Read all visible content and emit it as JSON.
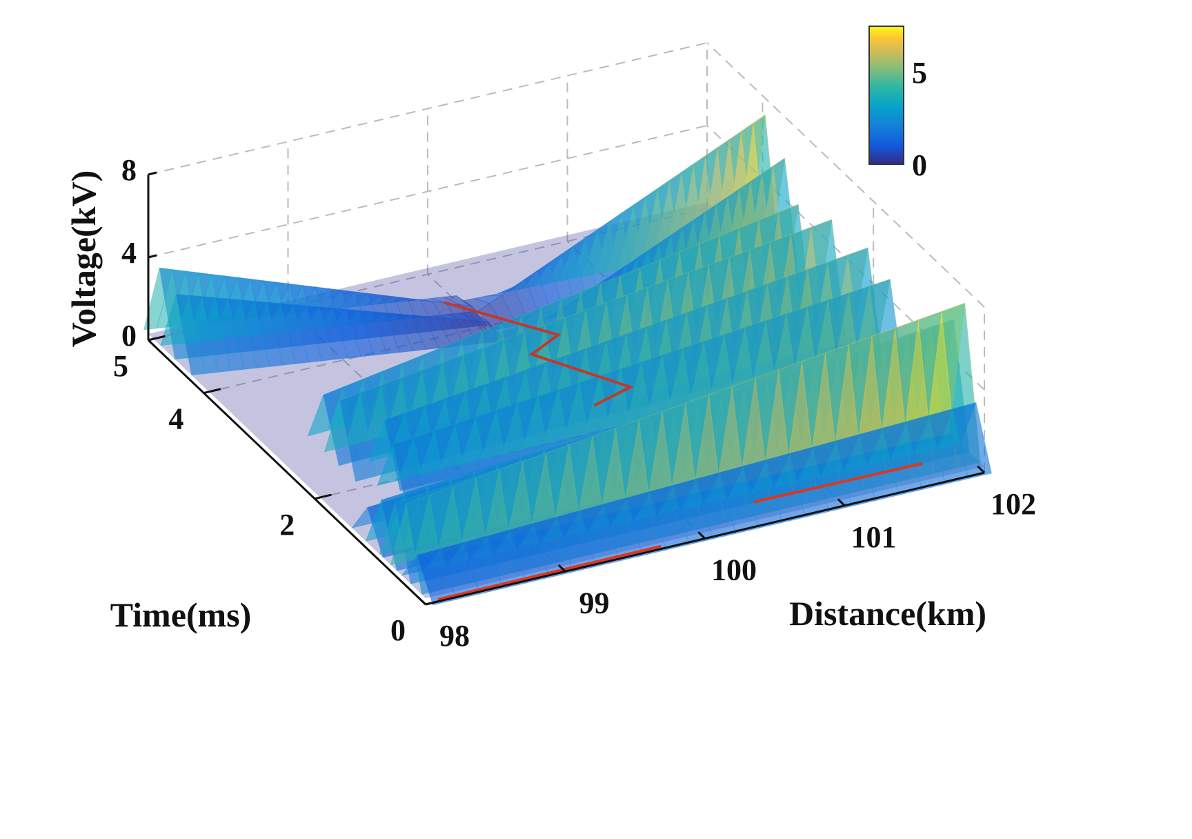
{
  "chart_data": {
    "type": "surface",
    "xlabel": "Distance(km)",
    "ylabel": "Time(ms)",
    "zlabel": "Voltage(kV)",
    "xlim": [
      98,
      102
    ],
    "ylim": [
      0,
      5
    ],
    "zlim": [
      0,
      8
    ],
    "xticks": [
      "98",
      "99",
      "100",
      "101",
      "102"
    ],
    "yticks": [
      "0",
      "2",
      "4",
      "5"
    ],
    "zticks": [
      "0",
      "4",
      "8"
    ],
    "grid": true,
    "colormap": "parula",
    "colorbar": {
      "range": [
        0,
        7.5
      ],
      "ticks": [
        "0",
        "5"
      ],
      "placement": "top-right"
    },
    "ridges": [
      {
        "points": [
          [
            98,
            4.8,
            4.0
          ],
          [
            100,
            4.2,
            0.5
          ]
        ]
      },
      {
        "points": [
          [
            98,
            4.5,
            3.5
          ],
          [
            100,
            3.9,
            0.5
          ]
        ]
      },
      {
        "points": [
          [
            100,
            4.1,
            0.5
          ],
          [
            102,
            3.95,
            7.2
          ]
        ]
      },
      {
        "points": [
          [
            100,
            3.5,
            0.5
          ],
          [
            102,
            3.6,
            6.0
          ]
        ]
      },
      {
        "points": [
          [
            98.3,
            2.6,
            3.0
          ],
          [
            101.8,
            2.85,
            6.0
          ]
        ]
      },
      {
        "points": [
          [
            98.3,
            2.3,
            3.5
          ],
          [
            101.9,
            2.5,
            6.0
          ]
        ]
      },
      {
        "points": [
          [
            98.5,
            2.0,
            3.0
          ],
          [
            102,
            2.1,
            5.5
          ]
        ]
      },
      {
        "points": [
          [
            98.4,
            1.6,
            3.0
          ],
          [
            102,
            1.7,
            5.0
          ]
        ]
      },
      {
        "points": [
          [
            98,
            1.05,
            2.0
          ],
          [
            102,
            1.05,
            4.0
          ]
        ]
      },
      {
        "points": [
          [
            98,
            0.8,
            3.0
          ],
          [
            102,
            0.8,
            5.0
          ]
        ]
      },
      {
        "points": [
          [
            98,
            0.55,
            3.5
          ],
          [
            102,
            0.55,
            6.0
          ]
        ]
      },
      {
        "points": [
          [
            98,
            0.35,
            4.0
          ],
          [
            102,
            0.35,
            7.3
          ]
        ]
      },
      {
        "points": [
          [
            98,
            0.15,
            2.0
          ],
          [
            102,
            0.15,
            3.0
          ]
        ]
      }
    ],
    "traces": [
      {
        "color": "#c0392b",
        "points": [
          [
            99.8,
            4.2,
            1
          ],
          [
            100.26,
            3.3,
            1
          ],
          [
            99.99,
            3.1,
            1
          ],
          [
            100.36,
            2.25,
            1
          ],
          [
            100.04,
            2.1,
            1
          ]
        ]
      },
      {
        "color": "#d9381e",
        "points": [
          [
            98.1,
            0.03,
            0
          ],
          [
            99.7,
            0.04,
            0
          ]
        ]
      },
      {
        "color": "#d9381e",
        "points": [
          [
            100.5,
            0.38,
            0
          ],
          [
            101.7,
            0.36,
            0
          ]
        ]
      }
    ],
    "colors": {
      "floor": "#3b3a9a",
      "grid": "#bbbbbb",
      "axis": "#111111"
    }
  }
}
